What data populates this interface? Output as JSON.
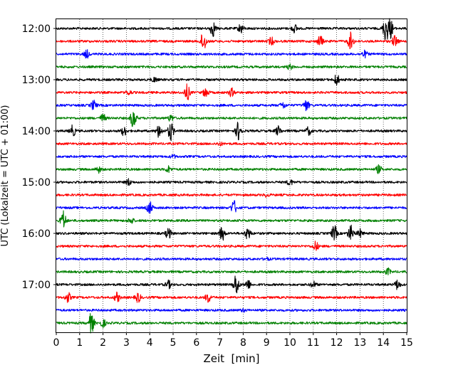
{
  "chart_data": {
    "type": "line",
    "title": "",
    "xlabel": "Zeit  [min]",
    "ylabel": "UTC (Lokalzeit = UTC + 01:00)",
    "xlim": [
      0,
      15
    ],
    "x_ticks": [
      "0",
      "1",
      "2",
      "3",
      "4",
      "5",
      "6",
      "7",
      "8",
      "9",
      "10",
      "11",
      "12",
      "13",
      "14",
      "15"
    ],
    "y_ticks": [
      "12:00",
      "13:00",
      "14:00",
      "15:00",
      "16:00",
      "17:00"
    ],
    "row_interval_minutes": 15,
    "start_time": "12:00",
    "grid": "vertical dotted at each minute",
    "color_cycle": [
      "#000000",
      "#ff0000",
      "#0000ff",
      "#008000"
    ],
    "rows": [
      {
        "time": "12:00",
        "color": "#000000",
        "events": [
          {
            "t": 6.7,
            "amp": 1.0
          },
          {
            "t": 7.9,
            "amp": 0.6
          },
          {
            "t": 14.1,
            "amp": 1.6
          },
          {
            "t": 14.3,
            "amp": 1.2
          },
          {
            "t": 10.2,
            "amp": 0.5
          }
        ]
      },
      {
        "time": "12:15",
        "color": "#ff0000",
        "events": [
          {
            "t": 6.3,
            "amp": 1.3
          },
          {
            "t": 11.3,
            "amp": 0.7
          },
          {
            "t": 12.6,
            "amp": 1.1
          },
          {
            "t": 14.5,
            "amp": 0.7
          },
          {
            "t": 9.2,
            "amp": 0.5
          }
        ]
      },
      {
        "time": "12:30",
        "color": "#0000ff",
        "events": [
          {
            "t": 1.3,
            "amp": 0.5
          },
          {
            "t": 13.2,
            "amp": 0.4
          }
        ]
      },
      {
        "time": "12:45",
        "color": "#008000",
        "events": [
          {
            "t": 10.0,
            "amp": 0.3
          }
        ]
      },
      {
        "time": "13:00",
        "color": "#000000",
        "events": [
          {
            "t": 12.0,
            "amp": 0.7
          },
          {
            "t": 4.2,
            "amp": 0.3
          }
        ]
      },
      {
        "time": "13:15",
        "color": "#ff0000",
        "events": [
          {
            "t": 5.6,
            "amp": 1.0
          },
          {
            "t": 6.4,
            "amp": 0.6
          },
          {
            "t": 7.5,
            "amp": 0.5
          },
          {
            "t": 3.1,
            "amp": 0.3
          }
        ]
      },
      {
        "time": "13:30",
        "color": "#0000ff",
        "events": [
          {
            "t": 1.6,
            "amp": 0.6
          },
          {
            "t": 10.7,
            "amp": 0.7
          },
          {
            "t": 9.7,
            "amp": 0.4
          }
        ]
      },
      {
        "time": "13:45",
        "color": "#008000",
        "events": [
          {
            "t": 3.3,
            "amp": 1.3
          },
          {
            "t": 2.0,
            "amp": 0.5
          },
          {
            "t": 4.9,
            "amp": 0.4
          }
        ]
      },
      {
        "time": "14:00",
        "color": "#000000",
        "events": [
          {
            "t": 0.7,
            "amp": 0.7
          },
          {
            "t": 2.9,
            "amp": 0.6
          },
          {
            "t": 4.4,
            "amp": 0.8
          },
          {
            "t": 4.9,
            "amp": 1.2
          },
          {
            "t": 7.8,
            "amp": 1.2
          },
          {
            "t": 9.5,
            "amp": 0.6
          },
          {
            "t": 10.8,
            "amp": 0.5
          }
        ]
      },
      {
        "time": "14:15",
        "color": "#ff0000",
        "events": [
          {
            "t": 7.0,
            "amp": 0.2
          }
        ]
      },
      {
        "time": "14:30",
        "color": "#0000ff",
        "events": [
          {
            "t": 5.0,
            "amp": 0.2
          }
        ]
      },
      {
        "time": "14:45",
        "color": "#008000",
        "events": [
          {
            "t": 1.8,
            "amp": 0.4
          },
          {
            "t": 4.8,
            "amp": 0.4
          },
          {
            "t": 13.8,
            "amp": 0.5
          }
        ]
      },
      {
        "time": "15:00",
        "color": "#000000",
        "events": [
          {
            "t": 3.1,
            "amp": 0.4
          },
          {
            "t": 10.0,
            "amp": 0.4
          }
        ]
      },
      {
        "time": "15:15",
        "color": "#ff0000",
        "events": [
          {
            "t": 9.0,
            "amp": 0.2
          }
        ]
      },
      {
        "time": "15:30",
        "color": "#0000ff",
        "events": [
          {
            "t": 4.0,
            "amp": 0.8
          },
          {
            "t": 7.6,
            "amp": 0.9
          }
        ]
      },
      {
        "time": "15:45",
        "color": "#008000",
        "events": [
          {
            "t": 0.3,
            "amp": 1.2
          },
          {
            "t": 3.2,
            "amp": 0.4
          }
        ]
      },
      {
        "time": "16:00",
        "color": "#000000",
        "events": [
          {
            "t": 4.8,
            "amp": 0.7
          },
          {
            "t": 7.1,
            "amp": 0.9
          },
          {
            "t": 8.2,
            "amp": 0.8
          },
          {
            "t": 11.9,
            "amp": 1.0
          },
          {
            "t": 12.6,
            "amp": 1.0
          },
          {
            "t": 13.0,
            "amp": 0.5
          }
        ]
      },
      {
        "time": "16:15",
        "color": "#ff0000",
        "events": [
          {
            "t": 11.1,
            "amp": 0.6
          }
        ]
      },
      {
        "time": "16:30",
        "color": "#0000ff",
        "events": [
          {
            "t": 9.0,
            "amp": 0.15
          }
        ]
      },
      {
        "time": "16:45",
        "color": "#008000",
        "events": [
          {
            "t": 14.2,
            "amp": 0.4
          }
        ]
      },
      {
        "time": "17:00",
        "color": "#000000",
        "events": [
          {
            "t": 4.8,
            "amp": 0.5
          },
          {
            "t": 7.7,
            "amp": 1.4
          },
          {
            "t": 8.2,
            "amp": 0.6
          },
          {
            "t": 14.6,
            "amp": 0.6
          },
          {
            "t": 11.0,
            "amp": 0.4
          }
        ]
      },
      {
        "time": "17:15",
        "color": "#ff0000",
        "events": [
          {
            "t": 0.5,
            "amp": 0.6
          },
          {
            "t": 2.6,
            "amp": 0.6
          },
          {
            "t": 3.5,
            "amp": 0.6
          },
          {
            "t": 6.5,
            "amp": 0.6
          }
        ]
      },
      {
        "time": "17:30",
        "color": "#0000ff",
        "events": [
          {
            "t": 8.0,
            "amp": 0.15
          }
        ]
      },
      {
        "time": "17:45",
        "color": "#008000",
        "events": [
          {
            "t": 1.5,
            "amp": 1.3
          },
          {
            "t": 2.0,
            "amp": 0.5
          }
        ]
      }
    ]
  }
}
